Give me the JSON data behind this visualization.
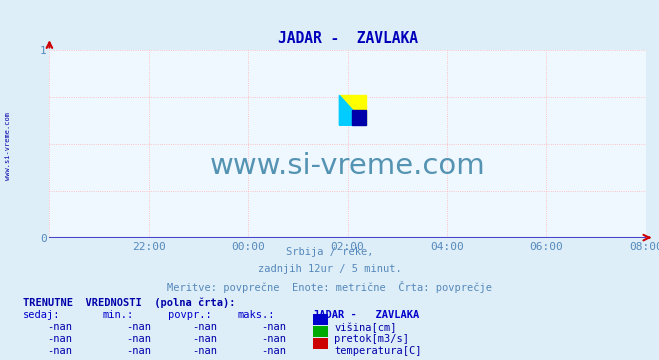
{
  "title": "JADAR -  ZAVLAKA",
  "title_color": "#0000bb",
  "background_color": "#ddeef8",
  "plot_bg_color": "#f0f8ff",
  "grid_color": "#ffb0b0",
  "axis_line_color": "#4444cc",
  "arrow_color": "#cc0000",
  "ytick_labels": [
    "0",
    "1"
  ],
  "ytick_values": [
    0,
    1
  ],
  "ylim": [
    0,
    1
  ],
  "xlim": [
    0,
    144
  ],
  "xtick_labels": [
    "22:00",
    "00:00",
    "02:00",
    "04:00",
    "06:00",
    "08:00"
  ],
  "xtick_positions": [
    24,
    48,
    72,
    96,
    120,
    144
  ],
  "tick_color": "#5588bb",
  "watermark_text": "www.si-vreme.com",
  "watermark_color": "#4488aa",
  "left_label": "www.si-vreme.com",
  "left_label_color": "#0000aa",
  "subtitle_lines": [
    "Srbija / reke,",
    "zadnjih 12ur / 5 minut.",
    "Meritve: povprečne  Enote: metrične  Črta: povprečje"
  ],
  "subtitle_color": "#5588bb",
  "table_header": "TRENUTNE  VREDNOSTI  (polna črta):",
  "table_header_color": "#0000aa",
  "col_headers": [
    "sedaj:",
    "min.:",
    "povpr.:",
    "maks.:",
    "JADAR -   ZAVLAKA"
  ],
  "col_header_color": "#0000cc",
  "rows": [
    [
      "-nan",
      "-nan",
      "-nan",
      "-nan",
      "višina[cm]",
      "#0000cc"
    ],
    [
      "-nan",
      "-nan",
      "-nan",
      "-nan",
      "pretok[m3/s]",
      "#00aa00"
    ],
    [
      "-nan",
      "-nan",
      "-nan",
      "-nan",
      "temperatura[C]",
      "#cc0000"
    ]
  ],
  "row_color": "#0000aa",
  "logo_colors": [
    "#ffff00",
    "#00ccff",
    "#0000aa"
  ]
}
